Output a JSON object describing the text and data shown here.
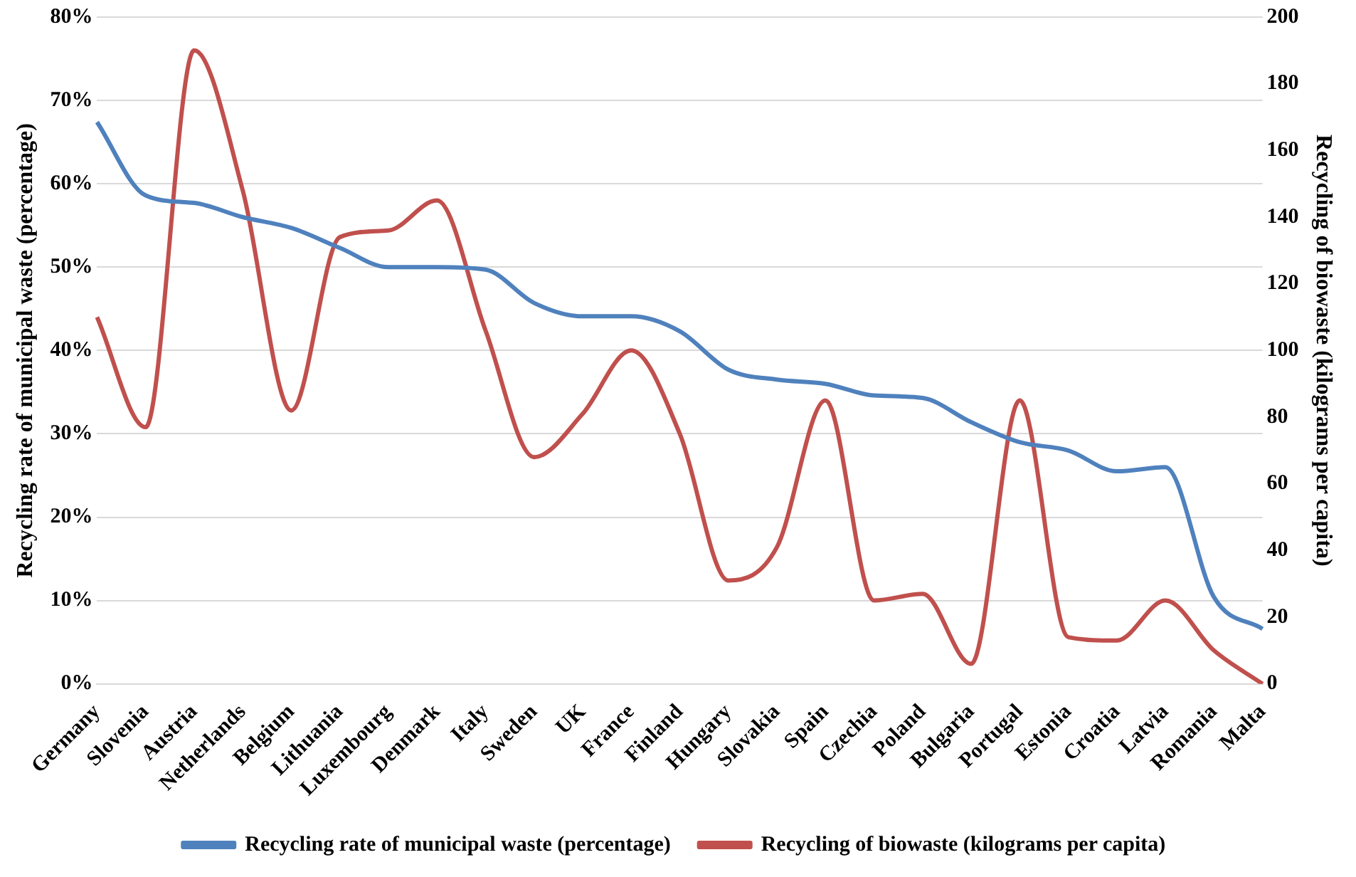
{
  "chart_data": {
    "type": "line",
    "ylabel": "Recycling rate of municipal waste (percentage)",
    "y2label": "Recycling of biowaste (kilograms per capita)",
    "categories": [
      "Germany",
      "Slovenia",
      "Austria",
      "Netherlands",
      "Belgium",
      "Lithuania",
      "Luxembourg",
      "Denmark",
      "Italy",
      "Sweden",
      "UK",
      "France",
      "Finland",
      "Hungary",
      "Slovakia",
      "Spain",
      "Czechia",
      "Poland",
      "Bulgaria",
      "Portugal",
      "Estonia",
      "Croatia",
      "Latvia",
      "Romania",
      "Malta"
    ],
    "series": [
      {
        "name": "Recycling rate of municipal waste (percentage)",
        "color": "#4f81bd",
        "values": [
          67.4,
          58.6,
          57.7,
          56,
          54.7,
          52.3,
          50,
          50,
          49.7,
          45.7,
          44.1,
          44.1,
          42.3,
          37.7,
          36.5,
          36,
          34.6,
          34.3,
          31.4,
          29,
          28,
          25.5,
          26,
          10.4,
          6.6
        ]
      },
      {
        "name": "Recycling of biowaste (kilograms per capita)",
        "color": "#c0504d",
        "axis": "y2",
        "values": [
          110,
          77,
          190,
          148,
          82,
          134,
          136,
          145,
          106,
          68,
          81,
          100,
          75,
          31,
          41,
          85,
          25,
          27,
          6,
          85,
          14,
          13,
          25,
          10,
          0
        ]
      }
    ],
    "ylim": [
      0,
      80
    ],
    "yticks": [
      {
        "value": 0,
        "label": "0%"
      },
      {
        "value": 10,
        "label": "10%"
      },
      {
        "value": 20,
        "label": "20%"
      },
      {
        "value": 30,
        "label": "30%"
      },
      {
        "value": 40,
        "label": "40%"
      },
      {
        "value": 50,
        "label": "50%"
      },
      {
        "value": 60,
        "label": "60%"
      },
      {
        "value": 70,
        "label": "70%"
      },
      {
        "value": 80,
        "label": "80%"
      }
    ],
    "y2lim": [
      0,
      200
    ],
    "y2ticks": [
      0,
      20,
      40,
      60,
      80,
      100,
      120,
      140,
      160,
      180,
      200
    ],
    "grid": "y",
    "legend": "bottom",
    "marker": "none",
    "line_style": "solid"
  }
}
